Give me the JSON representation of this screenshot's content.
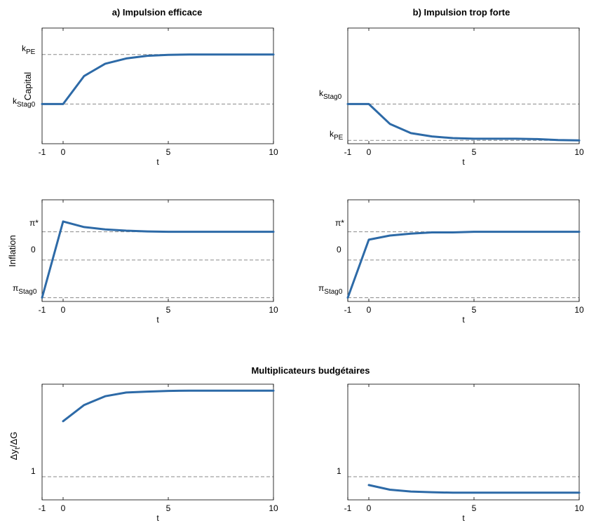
{
  "figure": {
    "titles": {
      "col_a": "a) Impulsion efficace",
      "col_b": "b) Impulsion trop forte",
      "row3": "Multiplicateurs budgétaires"
    },
    "ylabels": {
      "row1": "Capital",
      "row2": "Inflation",
      "row3_main": "Δy",
      "row3_sub": "t",
      "row3_tail": "/ΔG"
    },
    "xlabel": "t",
    "xticks": [
      "-1",
      "0",
      "5",
      "10"
    ],
    "ref_labels": {
      "k_base": "k",
      "pi_base": "π",
      "sub_pe": "PE",
      "sub_stag0": "Stag0",
      "pi_star": "π*",
      "zero": "0",
      "one": "1"
    },
    "line_color": "#2d6aa7"
  },
  "chart_data": [
    {
      "id": "capital-a",
      "type": "line",
      "title": "a) Impulsion efficace",
      "xlabel": "t",
      "ylabel": "Capital",
      "xlim": [
        -1,
        10
      ],
      "ylim": [
        -1.2,
        2.3
      ],
      "yticks_labels": [
        {
          "label": "k_Stag0",
          "value": 0
        },
        {
          "label": "k_PE",
          "value": 1.5
        }
      ],
      "reference_lines": [
        {
          "label": "k_PE",
          "y": 1.5
        },
        {
          "label": "k_Stag0",
          "y": 0
        }
      ],
      "x": [
        -1,
        0,
        1,
        2,
        3,
        4,
        5,
        6,
        7,
        8,
        9,
        10
      ],
      "values": [
        0,
        0,
        0.85,
        1.22,
        1.38,
        1.46,
        1.49,
        1.5,
        1.5,
        1.5,
        1.5,
        1.5
      ]
    },
    {
      "id": "capital-b",
      "type": "line",
      "title": "b) Impulsion trop forte",
      "xlabel": "t",
      "ylabel": "",
      "xlim": [
        -1,
        10
      ],
      "ylim": [
        -1.2,
        2.3
      ],
      "yticks_labels": [
        {
          "label": "k_Stag0",
          "value": 0
        },
        {
          "label": "k_PE",
          "value": -1.1
        }
      ],
      "reference_lines": [
        {
          "label": "k_Stag0",
          "y": 0
        },
        {
          "label": "k_PE",
          "y": -1.1
        }
      ],
      "x": [
        -1,
        0,
        1,
        2,
        3,
        4,
        5,
        6,
        7,
        8,
        9,
        10
      ],
      "values": [
        0,
        0,
        -0.6,
        -0.88,
        -0.98,
        -1.03,
        -1.05,
        -1.05,
        -1.05,
        -1.06,
        -1.09,
        -1.1
      ]
    },
    {
      "id": "inflation-a",
      "type": "line",
      "title": "",
      "xlabel": "t",
      "ylabel": "Inflation",
      "xlim": [
        -1,
        10
      ],
      "ylim": [
        -2.2,
        3.2
      ],
      "yticks_labels": [
        {
          "label": "π_Stag0",
          "value": -2
        },
        {
          "label": "0",
          "value": 0
        },
        {
          "label": "π*",
          "value": 1.5
        }
      ],
      "reference_lines": [
        {
          "label": "π*",
          "y": 1.5
        },
        {
          "label": "0",
          "y": 0
        },
        {
          "label": "π_Stag0",
          "y": -2
        }
      ],
      "x": [
        -1,
        0,
        1,
        2,
        3,
        4,
        5,
        6,
        7,
        8,
        9,
        10
      ],
      "values": [
        -2,
        2.05,
        1.75,
        1.63,
        1.56,
        1.52,
        1.5,
        1.5,
        1.5,
        1.5,
        1.5,
        1.5
      ]
    },
    {
      "id": "inflation-b",
      "type": "line",
      "title": "",
      "xlabel": "t",
      "ylabel": "",
      "xlim": [
        -1,
        10
      ],
      "ylim": [
        -2.2,
        3.2
      ],
      "yticks_labels": [
        {
          "label": "π_Stag0",
          "value": -2
        },
        {
          "label": "0",
          "value": 0
        },
        {
          "label": "π*",
          "value": 1.5
        }
      ],
      "reference_lines": [
        {
          "label": "π*",
          "y": 1.5
        },
        {
          "label": "0",
          "y": 0
        },
        {
          "label": "π_Stag0",
          "y": -2
        }
      ],
      "x": [
        -1,
        0,
        1,
        2,
        3,
        4,
        5,
        6,
        7,
        8,
        9,
        10
      ],
      "values": [
        -2,
        1.08,
        1.3,
        1.4,
        1.47,
        1.47,
        1.5,
        1.5,
        1.5,
        1.5,
        1.5,
        1.5
      ]
    },
    {
      "id": "multiplier-a",
      "type": "line",
      "title": "Multiplicateurs budgétaires",
      "xlabel": "t",
      "ylabel": "Δy_t/ΔG",
      "xlim": [
        -1,
        10
      ],
      "ylim": [
        0.5,
        3.0
      ],
      "yticks_labels": [
        {
          "label": "1",
          "value": 1
        }
      ],
      "reference_lines": [
        {
          "label": "1",
          "y": 1
        }
      ],
      "x": [
        0,
        1,
        2,
        3,
        4,
        5,
        6,
        7,
        8,
        9,
        10
      ],
      "values": [
        2.2,
        2.55,
        2.74,
        2.82,
        2.84,
        2.855,
        2.86,
        2.86,
        2.86,
        2.86,
        2.86
      ]
    },
    {
      "id": "multiplier-b",
      "type": "line",
      "title": "",
      "xlabel": "t",
      "ylabel": "",
      "xlim": [
        -1,
        10
      ],
      "ylim": [
        0.5,
        3.0
      ],
      "yticks_labels": [
        {
          "label": "1",
          "value": 1
        }
      ],
      "reference_lines": [
        {
          "label": "1",
          "y": 1
        }
      ],
      "x": [
        0,
        1,
        2,
        3,
        4,
        5,
        6,
        7,
        8,
        9,
        10
      ],
      "values": [
        0.82,
        0.72,
        0.68,
        0.665,
        0.655,
        0.655,
        0.655,
        0.655,
        0.655,
        0.655,
        0.655
      ]
    }
  ]
}
